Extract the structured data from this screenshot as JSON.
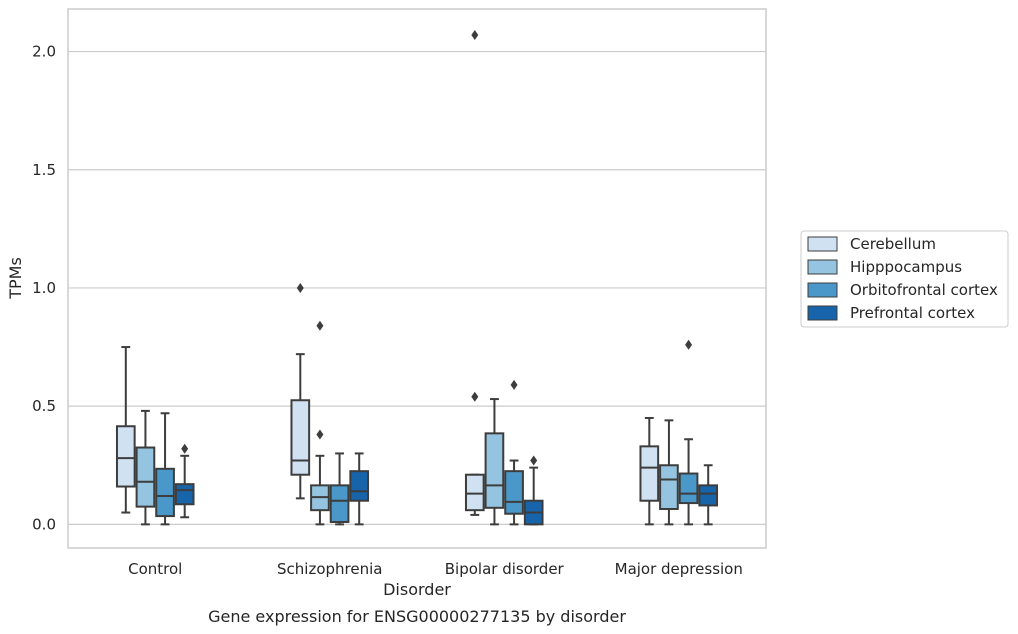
{
  "chart_data": {
    "type": "box",
    "title": "",
    "caption": "Gene expression for ENSG00000277135 by disorder",
    "xlabel": "Disorder",
    "ylabel": "TPMs",
    "ylim": [
      -0.1,
      2.18
    ],
    "yticks": [
      "0.0",
      "0.5",
      "1.0",
      "1.5",
      "2.0"
    ],
    "ytick_values": [
      0.0,
      0.5,
      1.0,
      1.5,
      2.0
    ],
    "grid": true,
    "legend_position": "right",
    "categories": [
      "Control",
      "Schizophrenia",
      "Bipolar disorder",
      "Major depression"
    ],
    "series": [
      {
        "name": "Cerebellum",
        "color": "#d0e1f2",
        "boxes": [
          {
            "whislo": 0.05,
            "q1": 0.16,
            "med": 0.28,
            "q3": 0.415,
            "whishi": 0.75,
            "fliers": []
          },
          {
            "whislo": 0.11,
            "q1": 0.21,
            "med": 0.27,
            "q3": 0.525,
            "whishi": 0.72,
            "fliers": [
              1.0
            ]
          },
          {
            "whislo": 0.04,
            "q1": 0.06,
            "med": 0.13,
            "q3": 0.21,
            "whishi": 0.21,
            "fliers": [
              0.54,
              2.07
            ]
          },
          {
            "whislo": 0.0,
            "q1": 0.1,
            "med": 0.24,
            "q3": 0.33,
            "whishi": 0.45,
            "fliers": []
          }
        ]
      },
      {
        "name": "Hipppocampus",
        "color": "#94c4df",
        "boxes": [
          {
            "whislo": 0.0,
            "q1": 0.075,
            "med": 0.18,
            "q3": 0.325,
            "whishi": 0.48,
            "fliers": []
          },
          {
            "whislo": 0.0,
            "q1": 0.06,
            "med": 0.115,
            "q3": 0.165,
            "whishi": 0.29,
            "fliers": [
              0.38,
              0.84
            ]
          },
          {
            "whislo": 0.0,
            "q1": 0.07,
            "med": 0.165,
            "q3": 0.385,
            "whishi": 0.53,
            "fliers": []
          },
          {
            "whislo": 0.0,
            "q1": 0.065,
            "med": 0.19,
            "q3": 0.25,
            "whishi": 0.44,
            "fliers": []
          }
        ]
      },
      {
        "name": "Orbitofrontal cortex",
        "color": "#4a98c9",
        "boxes": [
          {
            "whislo": 0.0,
            "q1": 0.035,
            "med": 0.12,
            "q3": 0.235,
            "whishi": 0.47,
            "fliers": []
          },
          {
            "whislo": 0.0,
            "q1": 0.01,
            "med": 0.1,
            "q3": 0.165,
            "whishi": 0.3,
            "fliers": []
          },
          {
            "whislo": 0.0,
            "q1": 0.045,
            "med": 0.095,
            "q3": 0.225,
            "whishi": 0.27,
            "fliers": [
              0.59
            ]
          },
          {
            "whislo": 0.0,
            "q1": 0.09,
            "med": 0.13,
            "q3": 0.215,
            "whishi": 0.36,
            "fliers": [
              0.76
            ]
          }
        ]
      },
      {
        "name": "Prefrontal cortex",
        "color": "#1764ab",
        "boxes": [
          {
            "whislo": 0.03,
            "q1": 0.085,
            "med": 0.145,
            "q3": 0.17,
            "whishi": 0.29,
            "fliers": [
              0.32
            ]
          },
          {
            "whislo": 0.0,
            "q1": 0.1,
            "med": 0.14,
            "q3": 0.225,
            "whishi": 0.3,
            "fliers": []
          },
          {
            "whislo": 0.0,
            "q1": 0.0,
            "med": 0.05,
            "q3": 0.1,
            "whishi": 0.24,
            "fliers": [
              0.27
            ]
          },
          {
            "whislo": 0.0,
            "q1": 0.08,
            "med": 0.13,
            "q3": 0.165,
            "whishi": 0.25,
            "fliers": []
          }
        ]
      }
    ]
  }
}
